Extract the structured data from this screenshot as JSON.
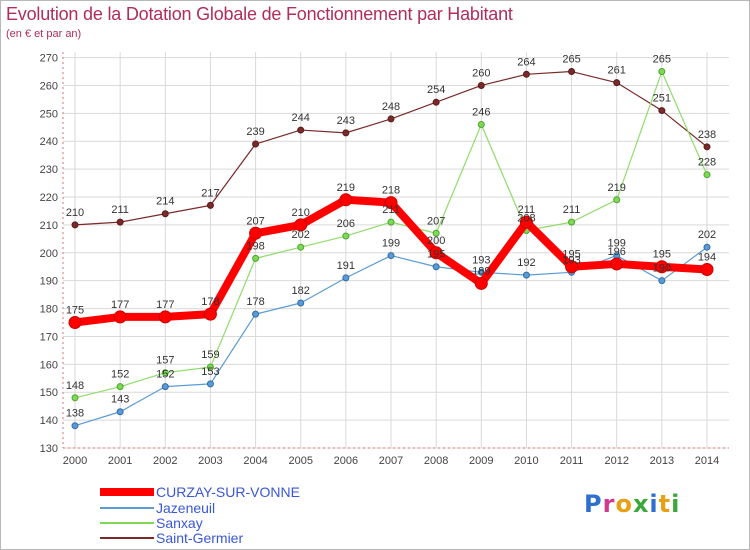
{
  "title": "Evolution de la Dotation Globale de Fonctionnement par Habitant",
  "subtitle": "(en € et par an)",
  "logo_text": "Proxiti",
  "chart_data": {
    "type": "line",
    "x": [
      "2000",
      "2001",
      "2002",
      "2003",
      "2004",
      "2005",
      "2006",
      "2007",
      "2008",
      "2009",
      "2010",
      "2011",
      "2012",
      "2013",
      "2014"
    ],
    "yticks": [
      130,
      140,
      150,
      160,
      170,
      180,
      190,
      200,
      210,
      220,
      230,
      240,
      250,
      260,
      270
    ],
    "ylim": [
      130,
      272
    ],
    "grid": true,
    "legend_position": "bottom-left",
    "series": [
      {
        "name": "CURZAY-SUR-VONNE",
        "color": "#ff0000",
        "values": [
          175,
          177,
          177,
          178,
          207,
          210,
          219,
          218,
          200,
          189,
          211,
          195,
          196,
          195,
          194
        ],
        "labels": [
          "175",
          "177",
          "177",
          "178",
          "207",
          "210",
          "219",
          "218",
          "200",
          "189",
          "211",
          "195",
          "196",
          "195",
          "194"
        ]
      },
      {
        "name": "Jazeneuil",
        "color": "#5b9bd5",
        "values": [
          138,
          143,
          152,
          153,
          178,
          182,
          191,
          199,
          195,
          193,
          192,
          193,
          199,
          190,
          202
        ],
        "labels": [
          "138",
          "143",
          "152",
          "153",
          "178",
          "182",
          "191",
          "199",
          "195",
          "193",
          "192",
          "193",
          "199",
          "190",
          "202"
        ]
      },
      {
        "name": "Sanxay",
        "color": "#7ed957",
        "values": [
          148,
          152,
          157,
          159,
          198,
          202,
          206,
          211,
          207,
          246,
          208,
          211,
          219,
          265,
          228
        ],
        "labels": [
          "148",
          "152",
          "157",
          "159",
          "198",
          "202",
          "206",
          "211",
          "207",
          "246",
          "208",
          "211",
          "219",
          "265",
          "228"
        ]
      },
      {
        "name": "Saint-Germier",
        "color": "#7a2a2a",
        "values": [
          210,
          211,
          214,
          217,
          239,
          244,
          243,
          248,
          254,
          260,
          264,
          265,
          261,
          251,
          238
        ],
        "labels": [
          "210",
          "211",
          "214",
          "217",
          "239",
          "244",
          "243",
          "248",
          "254",
          "260",
          "264",
          "265",
          "261",
          "251",
          "238"
        ]
      }
    ]
  }
}
